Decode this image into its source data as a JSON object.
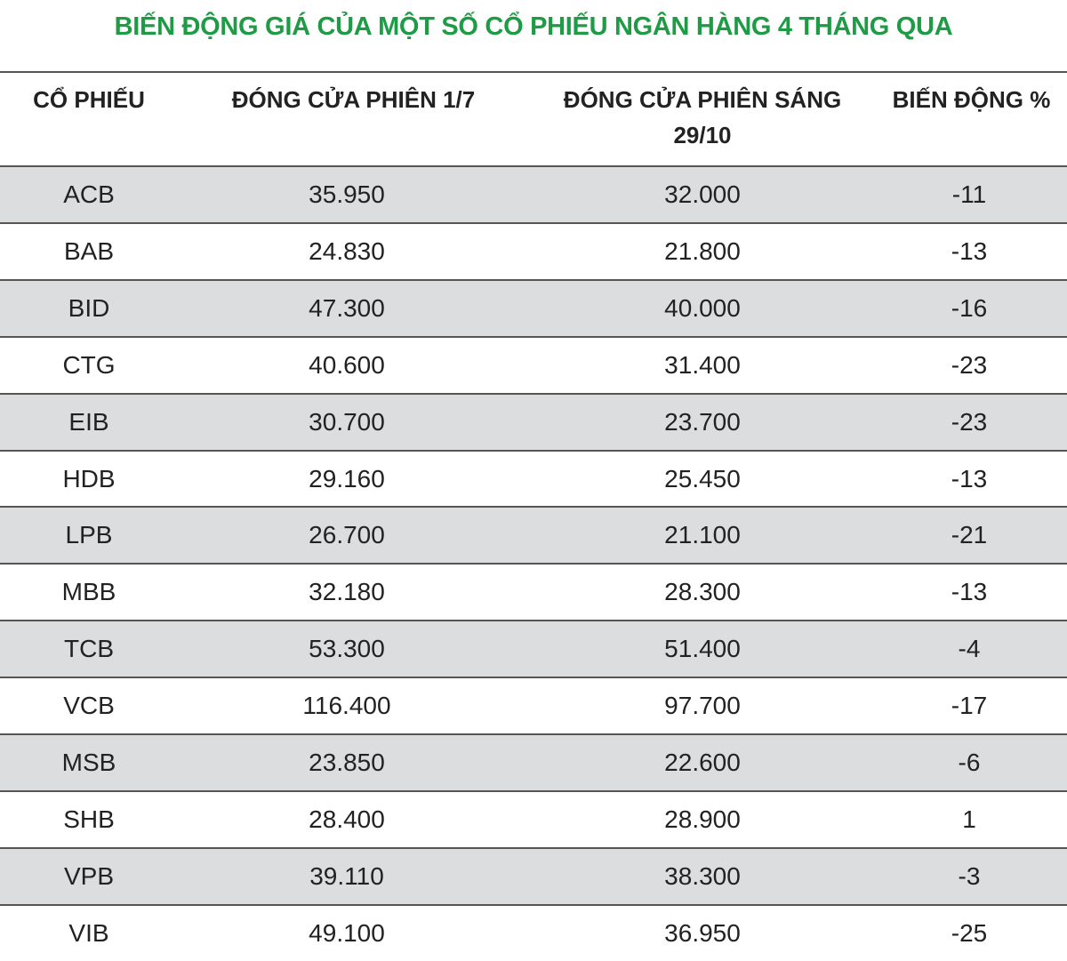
{
  "title": "BIẾN ĐỘNG GIÁ CỦA MỘT SỐ CỔ PHIẾU NGÂN HÀNG 4 THÁNG QUA",
  "table": {
    "headers": [
      "CỔ PHIẾU",
      "ĐÓNG CỬA PHIÊN 1/7",
      "ĐÓNG CỬA PHIÊN SÁNG 29/10",
      "BIẾN ĐỘNG %"
    ],
    "rows": [
      [
        "ACB",
        "35.950",
        "32.000",
        "-11"
      ],
      [
        "BAB",
        "24.830",
        "21.800",
        "-13"
      ],
      [
        "BID",
        "47.300",
        "40.000",
        "-16"
      ],
      [
        "CTG",
        "40.600",
        "31.400",
        "-23"
      ],
      [
        "EIB",
        "30.700",
        "23.700",
        "-23"
      ],
      [
        "HDB",
        "29.160",
        "25.450",
        "-13"
      ],
      [
        "LPB",
        "26.700",
        "21.100",
        "-21"
      ],
      [
        "MBB",
        "32.180",
        "28.300",
        "-13"
      ],
      [
        "TCB",
        "53.300",
        "51.400",
        "-4"
      ],
      [
        "VCB",
        "116.400",
        "97.700",
        "-17"
      ],
      [
        "MSB",
        "23.850",
        "22.600",
        "-6"
      ],
      [
        "SHB",
        "28.400",
        "28.900",
        "1"
      ],
      [
        "VPB",
        "39.110",
        "38.300",
        "-3"
      ],
      [
        "VIB",
        "49.100",
        "36.950",
        "-25"
      ]
    ]
  }
}
